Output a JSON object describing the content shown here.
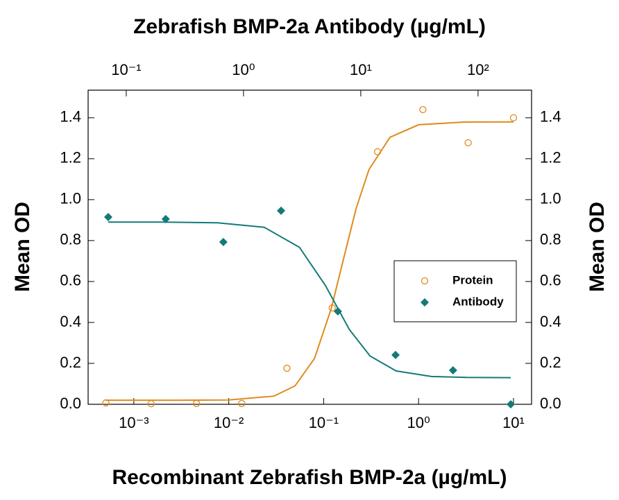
{
  "chart_data": {
    "type": "scatter",
    "title": "Zebrafish BMP-2a Antibody (µg/mL)",
    "x_label": "Recombinant Zebrafish BMP-2a (µg/mL)",
    "y_label": "Mean OD",
    "y2_label": "Mean OD",
    "xscale": "log",
    "xlim": [
      0.00033,
      15.5
    ],
    "xticks": [
      {
        "value": 0.001,
        "label": "10⁻³"
      },
      {
        "value": 0.01,
        "label": "10⁻²"
      },
      {
        "value": 0.1,
        "label": "10⁻¹"
      },
      {
        "value": 1,
        "label": "10⁰"
      },
      {
        "value": 10,
        "label": "10¹"
      }
    ],
    "x2lim": [
      0.0473,
      286
    ],
    "x2ticks": [
      {
        "value": 0.1,
        "label": "10⁻¹"
      },
      {
        "value": 1,
        "label": "10⁰"
      },
      {
        "value": 10,
        "label": "10¹"
      },
      {
        "value": 100,
        "label": "10²"
      }
    ],
    "ylim": [
      0,
      1.535
    ],
    "yticks": [
      {
        "value": 0,
        "label": "0.0"
      },
      0.2,
      0.4,
      0.6,
      0.8,
      {
        "value": 1,
        "label": "1.0"
      },
      1.2,
      1.4
    ],
    "y2lim": [
      0,
      1.535
    ],
    "y2ticks": [
      {
        "value": 0,
        "label": "0.0"
      },
      0.2,
      0.4,
      0.6,
      0.8,
      {
        "value": 1,
        "label": "1.0"
      },
      1.2,
      1.4
    ],
    "series": [
      {
        "name": "Protein",
        "color": "#e08a1e",
        "marker": "circle",
        "x": [
          0.000508,
          0.00152,
          0.00457,
          0.0137,
          0.041,
          0.123,
          0.37,
          1.11,
          3.33,
          10
        ],
        "values": [
          0.007,
          0.003,
          0.004,
          0.004,
          0.176,
          0.471,
          1.234,
          1.44,
          1.278,
          1.4
        ],
        "fit": {
          "x": [
            0.0005,
            0.001,
            0.003,
            0.01,
            0.03,
            0.05,
            0.08,
            0.12,
            0.16,
            0.22,
            0.3,
            0.5,
            1,
            3,
            10
          ],
          "values": [
            0.02,
            0.02,
            0.02,
            0.021,
            0.04,
            0.09,
            0.224,
            0.466,
            0.7,
            0.957,
            1.147,
            1.305,
            1.366,
            1.379,
            1.38
          ]
        }
      },
      {
        "name": "Antibody",
        "color": "#137a78",
        "marker": "diamond",
        "axis": "x2",
        "x": [
          0.0702,
          0.217,
          0.673,
          2.09,
          6.38,
          19.8,
          61.2,
          190
        ],
        "values": [
          0.915,
          0.905,
          0.793,
          0.946,
          0.454,
          0.241,
          0.166,
          0.0
        ],
        "fit": {
          "x": [
            0.07,
            0.2,
            0.6,
            1.5,
            3,
            5,
            8,
            12,
            20,
            40,
            80,
            190
          ],
          "values": [
            0.89,
            0.89,
            0.887,
            0.865,
            0.767,
            0.58,
            0.365,
            0.236,
            0.163,
            0.136,
            0.131,
            0.13
          ]
        }
      }
    ]
  }
}
